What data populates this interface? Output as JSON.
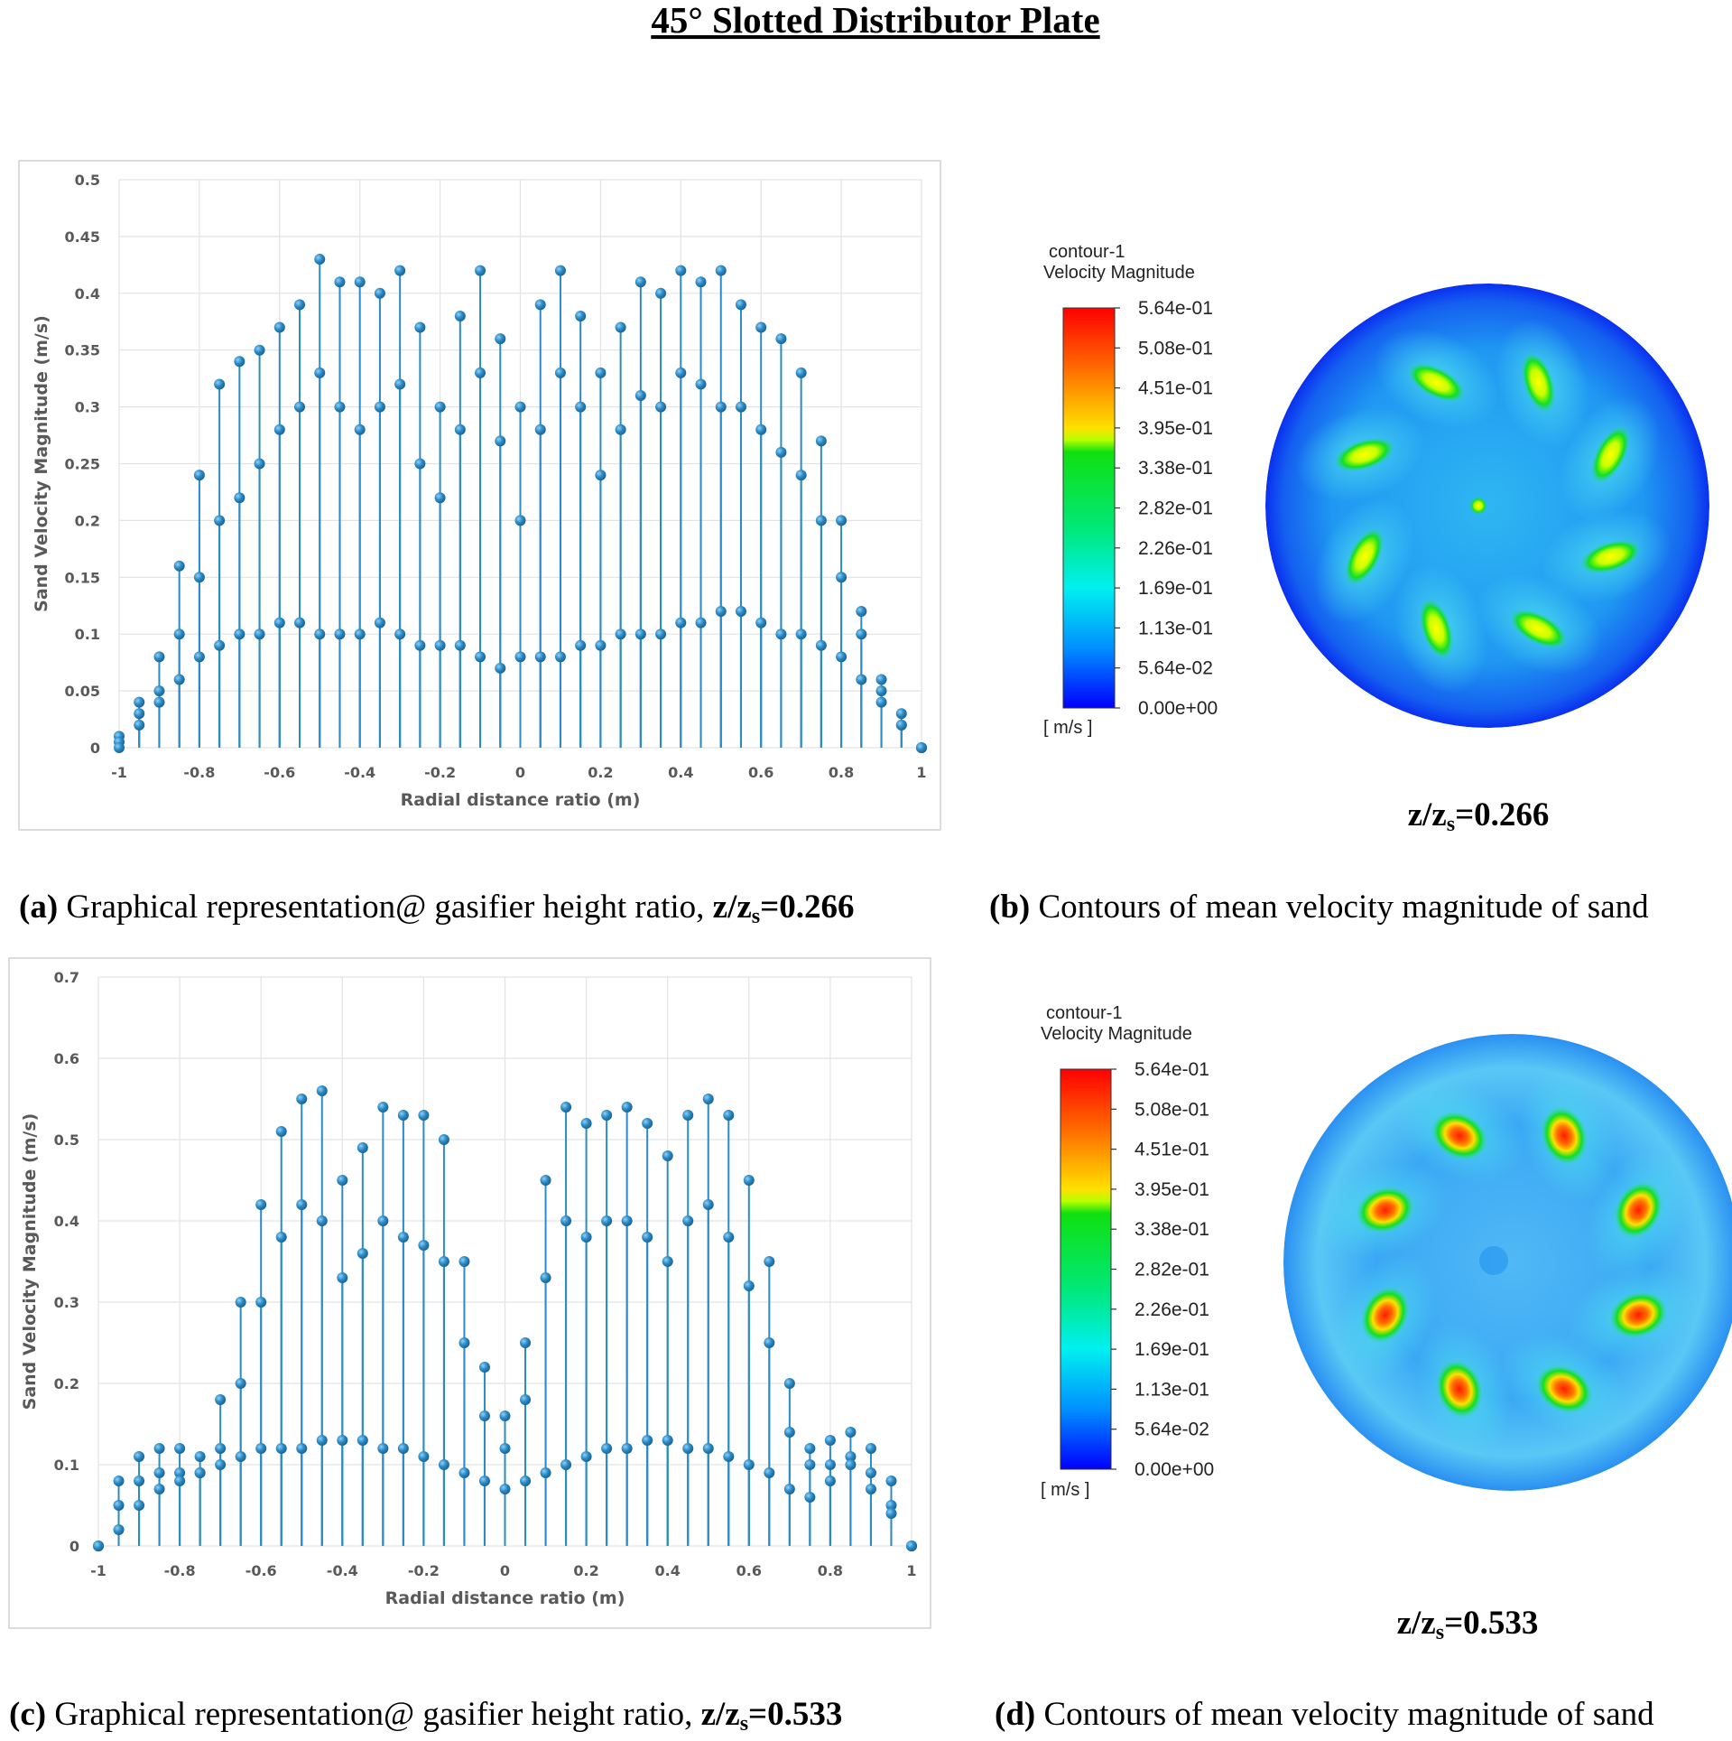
{
  "title": "45° Slotted Distributor Plate",
  "chart_data": [
    {
      "type": "scatter",
      "x_label": "Radial distance ratio (m)",
      "y_label": "Sand Velocity Magnitude (m/s)",
      "xlim": [
        -1,
        1
      ],
      "ylim": [
        0,
        0.5
      ],
      "xticks": [
        -1,
        -0.8,
        -0.6,
        -0.4,
        -0.2,
        0,
        0.2,
        0.4,
        0.6,
        0.8,
        1
      ],
      "yticks": [
        0,
        0.05,
        0.1,
        0.15,
        0.2,
        0.25,
        0.3,
        0.35,
        0.4,
        0.45,
        0.5
      ],
      "grid": true,
      "color": "#2b8bc6",
      "x": [
        -1,
        -0.95,
        -0.9,
        -0.85,
        -0.8,
        -0.75,
        -0.7,
        -0.65,
        -0.6,
        -0.55,
        -0.5,
        -0.45,
        -0.4,
        -0.35,
        -0.3,
        -0.25,
        -0.2,
        -0.15,
        -0.1,
        -0.05,
        0,
        0.05,
        0.1,
        0.15,
        0.2,
        0.25,
        0.3,
        0.35,
        0.4,
        0.45,
        0.5,
        0.55,
        0.6,
        0.65,
        0.7,
        0.75,
        0.8,
        0.85,
        0.9,
        0.95,
        1,
        -1,
        -0.95,
        -0.9,
        -0.85,
        -0.8,
        -0.75,
        -0.7,
        -0.65,
        -0.6,
        -0.55,
        -0.5,
        -0.45,
        -0.4,
        -0.35,
        -0.3,
        -0.25,
        -0.2,
        -0.15,
        -0.1,
        -0.05,
        0,
        0.05,
        0.1,
        0.15,
        0.2,
        0.25,
        0.3,
        0.35,
        0.4,
        0.45,
        0.5,
        0.55,
        0.6,
        0.65,
        0.7,
        0.75,
        0.8,
        0.85,
        0.9,
        0.95,
        1,
        -1,
        -0.95,
        -0.9,
        -0.85,
        -0.8,
        -0.75,
        -0.7,
        -0.65,
        -0.6,
        -0.55,
        -0.5,
        -0.45,
        -0.4,
        -0.35,
        -0.3,
        -0.25,
        -0.2,
        -0.15,
        -0.1,
        -0.05,
        0,
        0.05,
        0.1,
        0.15,
        0.2,
        0.25,
        0.3,
        0.35,
        0.4,
        0.45,
        0.5,
        0.55,
        0.6,
        0.65,
        0.7,
        0.75,
        0.8,
        0.85,
        0.9,
        0.95,
        1
      ],
      "values": [
        0.01,
        0.04,
        0.08,
        0.16,
        0.24,
        0.32,
        0.34,
        0.35,
        0.37,
        0.39,
        0.43,
        0.41,
        0.41,
        0.4,
        0.42,
        0.37,
        0.3,
        0.38,
        0.42,
        0.36,
        0.3,
        0.39,
        0.42,
        0.38,
        0.33,
        0.37,
        0.41,
        0.4,
        0.42,
        0.41,
        0.42,
        0.39,
        0.37,
        0.36,
        0.33,
        0.27,
        0.2,
        0.12,
        0.06,
        0.03,
        0,
        0.005,
        0.03,
        0.05,
        0.1,
        0.15,
        0.2,
        0.22,
        0.25,
        0.28,
        0.3,
        0.33,
        0.3,
        0.28,
        0.3,
        0.32,
        0.25,
        0.22,
        0.28,
        0.33,
        0.27,
        0.2,
        0.28,
        0.33,
        0.3,
        0.24,
        0.28,
        0.31,
        0.3,
        0.33,
        0.32,
        0.3,
        0.3,
        0.28,
        0.26,
        0.24,
        0.2,
        0.15,
        0.1,
        0.05,
        0.02,
        0,
        0,
        0.02,
        0.04,
        0.06,
        0.08,
        0.09,
        0.1,
        0.1,
        0.11,
        0.11,
        0.1,
        0.1,
        0.1,
        0.11,
        0.1,
        0.09,
        0.09,
        0.09,
        0.08,
        0.07,
        0.08,
        0.08,
        0.08,
        0.09,
        0.09,
        0.1,
        0.1,
        0.1,
        0.11,
        0.11,
        0.12,
        0.12,
        0.11,
        0.1,
        0.1,
        0.09,
        0.08,
        0.06,
        0.04,
        0.02,
        0
      ]
    },
    {
      "type": "scatter",
      "x_label": "Radial distance ratio (m)",
      "y_label": "Sand Velocity Magnitude (m/s)",
      "xlim": [
        -1,
        1
      ],
      "ylim": [
        0,
        0.7
      ],
      "xticks": [
        -1,
        -0.8,
        -0.6,
        -0.4,
        -0.2,
        0,
        0.2,
        0.4,
        0.6,
        0.8,
        1
      ],
      "yticks": [
        0,
        0.1,
        0.2,
        0.3,
        0.4,
        0.5,
        0.6,
        0.7
      ],
      "grid": true,
      "color": "#2b8bc6",
      "x": [
        -1,
        -0.95,
        -0.9,
        -0.85,
        -0.8,
        -0.75,
        -0.7,
        -0.65,
        -0.6,
        -0.55,
        -0.5,
        -0.45,
        -0.4,
        -0.35,
        -0.3,
        -0.25,
        -0.2,
        -0.15,
        -0.1,
        -0.05,
        0,
        0.05,
        0.1,
        0.15,
        0.2,
        0.25,
        0.3,
        0.35,
        0.4,
        0.45,
        0.5,
        0.55,
        0.6,
        0.65,
        0.7,
        0.75,
        0.8,
        0.85,
        0.9,
        0.95,
        1,
        -1,
        -0.95,
        -0.9,
        -0.85,
        -0.8,
        -0.75,
        -0.7,
        -0.65,
        -0.6,
        -0.55,
        -0.5,
        -0.45,
        -0.4,
        -0.35,
        -0.3,
        -0.25,
        -0.2,
        -0.15,
        -0.1,
        -0.05,
        0,
        0.05,
        0.1,
        0.15,
        0.2,
        0.25,
        0.3,
        0.35,
        0.4,
        0.45,
        0.5,
        0.55,
        0.6,
        0.65,
        0.7,
        0.75,
        0.8,
        0.85,
        0.9,
        0.95,
        1,
        -1,
        -0.95,
        -0.9,
        -0.85,
        -0.8,
        -0.75,
        -0.7,
        -0.65,
        -0.6,
        -0.55,
        -0.5,
        -0.45,
        -0.4,
        -0.35,
        -0.3,
        -0.25,
        -0.2,
        -0.15,
        -0.1,
        -0.05,
        0,
        0.05,
        0.1,
        0.15,
        0.2,
        0.25,
        0.3,
        0.35,
        0.4,
        0.45,
        0.5,
        0.55,
        0.6,
        0.65,
        0.7,
        0.75,
        0.8,
        0.85,
        0.9,
        0.95,
        1
      ],
      "values": [
        0,
        0.08,
        0.11,
        0.12,
        0.12,
        0.11,
        0.18,
        0.3,
        0.42,
        0.51,
        0.55,
        0.56,
        0.45,
        0.49,
        0.54,
        0.53,
        0.53,
        0.5,
        0.35,
        0.22,
        0.16,
        0.25,
        0.45,
        0.54,
        0.52,
        0.53,
        0.54,
        0.52,
        0.48,
        0.53,
        0.55,
        0.53,
        0.45,
        0.35,
        0.2,
        0.12,
        0.13,
        0.14,
        0.12,
        0.08,
        0,
        0,
        0.05,
        0.08,
        0.09,
        0.09,
        0.09,
        0.12,
        0.2,
        0.3,
        0.38,
        0.42,
        0.4,
        0.33,
        0.36,
        0.4,
        0.38,
        0.37,
        0.35,
        0.25,
        0.16,
        0.12,
        0.18,
        0.33,
        0.4,
        0.38,
        0.4,
        0.4,
        0.38,
        0.35,
        0.4,
        0.42,
        0.38,
        0.32,
        0.25,
        0.14,
        0.1,
        0.1,
        0.11,
        0.09,
        0.05,
        0,
        0,
        0.02,
        0.05,
        0.07,
        0.08,
        0.09,
        0.1,
        0.11,
        0.12,
        0.12,
        0.12,
        0.13,
        0.13,
        0.13,
        0.12,
        0.12,
        0.11,
        0.1,
        0.09,
        0.08,
        0.07,
        0.08,
        0.09,
        0.1,
        0.11,
        0.12,
        0.12,
        0.13,
        0.13,
        0.12,
        0.12,
        0.11,
        0.1,
        0.09,
        0.07,
        0.06,
        0.08,
        0.1,
        0.07,
        0.04,
        0
      ]
    }
  ],
  "contours": [
    {
      "legend_title": "contour-1",
      "legend_subtitle": "Velocity Magnitude",
      "levels": [
        "5.64e-01",
        "5.08e-01",
        "4.51e-01",
        "3.95e-01",
        "3.38e-01",
        "2.82e-01",
        "2.26e-01",
        "1.69e-01",
        "1.13e-01",
        "5.64e-02",
        "0.00e+00"
      ],
      "unit": "[ m/s ]",
      "height_label": {
        "lhs": "z/z",
        "sub": "s",
        "rhs": "=0.266"
      }
    },
    {
      "legend_title": "contour-1",
      "legend_subtitle": "Velocity Magnitude",
      "levels": [
        "5.64e-01",
        "5.08e-01",
        "4.51e-01",
        "3.95e-01",
        "3.38e-01",
        "2.82e-01",
        "2.26e-01",
        "1.69e-01",
        "1.13e-01",
        "5.64e-02",
        "0.00e+00"
      ],
      "unit": "[ m/s ]",
      "height_label": {
        "lhs": "z/z",
        "sub": "s",
        "rhs": "=0.533"
      }
    }
  ],
  "captions": [
    {
      "tag": "(a)",
      "text": " Graphical representation@ gasifier height ratio, ",
      "lhs": "z/z",
      "sub": "s",
      "rhs": "=0.266"
    },
    {
      "tag": "(b)",
      "text": " Contours of mean velocity magnitude of sand"
    },
    {
      "tag": "(c)",
      "text": " Graphical representation@ gasifier height ratio, ",
      "lhs": "z/z",
      "sub": "s",
      "rhs": "=0.533"
    },
    {
      "tag": "(d)",
      "text": " Contours of mean velocity magnitude of sand"
    }
  ]
}
